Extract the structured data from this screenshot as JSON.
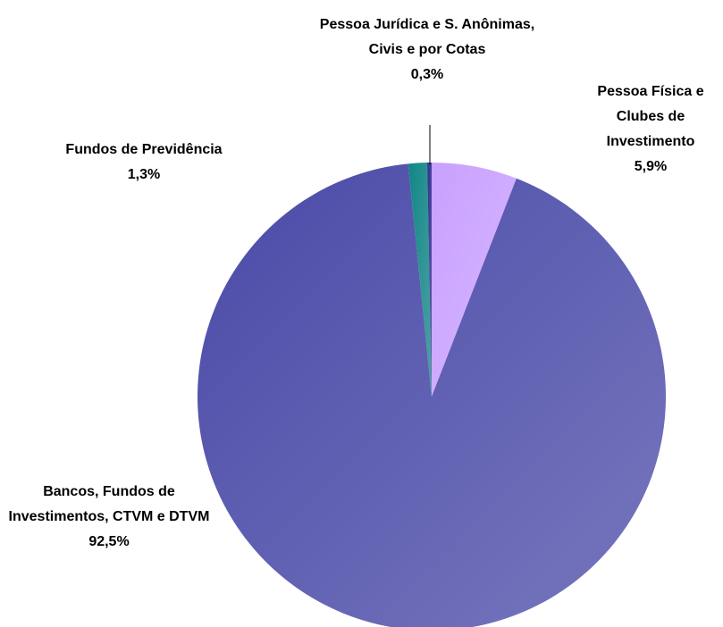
{
  "chart_data": {
    "type": "pie",
    "categories": [
      "Pessoa Física e Clubes de Investimento",
      "Bancos, Fundos de Investimentos, CTVM e DTVM",
      "Fundos de Previdência",
      "Pessoa Jurídica e S. Anônimas, Civis e por Cotas"
    ],
    "values": [
      5.9,
      92.5,
      1.3,
      0.3
    ],
    "value_labels": [
      "5,9%",
      "92,5%",
      "1,3%",
      "0,3%"
    ],
    "colors": [
      "#c9a0ff",
      "#4a4aa8",
      "#108585",
      "#2e2e8e"
    ]
  }
}
